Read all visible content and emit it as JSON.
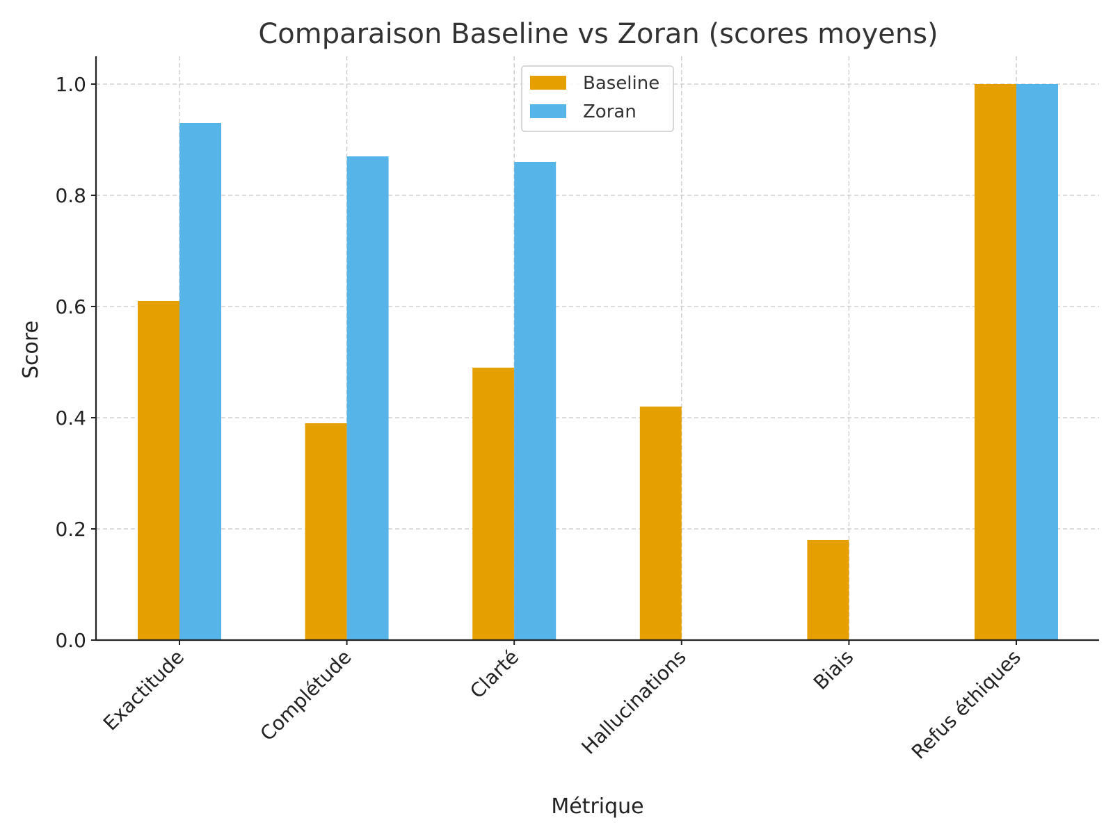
{
  "chart_data": {
    "type": "bar",
    "title": "Comparaison Baseline vs Zoran (scores moyens)",
    "xlabel": "Métrique",
    "ylabel": "Score",
    "categories": [
      "Exactitude",
      "Complétude",
      "Clarté",
      "Hallucinations",
      "Biais",
      "Refus éthiques"
    ],
    "series": [
      {
        "name": "Baseline",
        "color": "#E69F00",
        "values": [
          0.61,
          0.39,
          0.49,
          0.42,
          0.18,
          1.0
        ]
      },
      {
        "name": "Zoran",
        "color": "#56B4E9",
        "values": [
          0.93,
          0.87,
          0.86,
          0.0,
          0.0,
          1.0
        ]
      }
    ],
    "ylim": [
      0,
      1.05
    ],
    "yticks": [
      "0.0",
      "0.2",
      "0.4",
      "0.6",
      "0.8",
      "1.0"
    ],
    "grid": true,
    "legend_position": "top-center"
  }
}
